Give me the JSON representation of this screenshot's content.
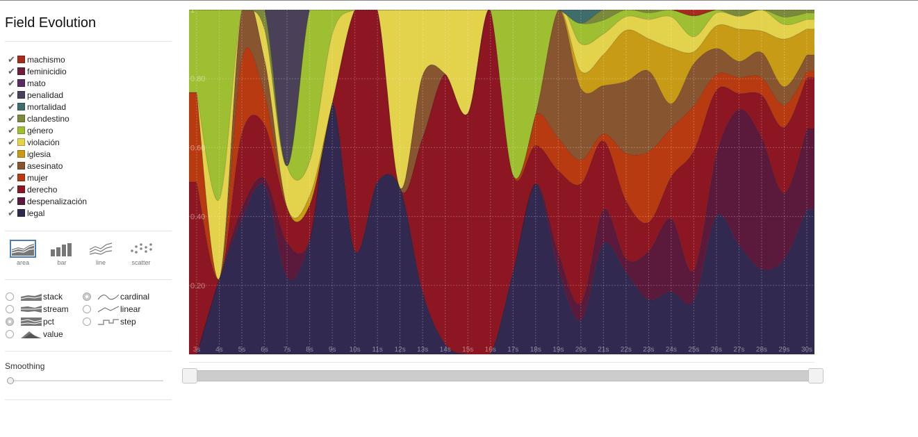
{
  "sidebar": {
    "title": "Field Evolution",
    "check_glyph": "✔",
    "renderers": [
      {
        "label": "area",
        "icon": "area-icon",
        "selected": true
      },
      {
        "label": "bar",
        "icon": "bar-icon",
        "selected": false
      },
      {
        "label": "line",
        "icon": "line-icon",
        "selected": false
      },
      {
        "label": "scatter",
        "icon": "scatter-icon",
        "selected": false
      }
    ],
    "offsets": [
      {
        "label": "stack",
        "icon": "stack-icon",
        "checked": false
      },
      {
        "label": "stream",
        "icon": "stream-icon",
        "checked": false
      },
      {
        "label": "pct",
        "icon": "pct-icon",
        "checked": true
      },
      {
        "label": "value",
        "icon": "value-icon",
        "checked": false
      }
    ],
    "interpolations": [
      {
        "label": "cardinal",
        "icon": "cardinal-icon",
        "checked": true
      },
      {
        "label": "linear",
        "icon": "linear-icon",
        "checked": false
      },
      {
        "label": "step",
        "icon": "step-icon",
        "checked": false
      }
    ],
    "smoothing_label": "Smoothing",
    "smoothing_value": 0
  },
  "colors": {
    "accent": "#4a7fb2"
  },
  "range_slider": {
    "start": 0,
    "end": 1
  },
  "chart_data": {
    "type": "area",
    "offset": "pct",
    "interpolation": "cardinal",
    "ylim": [
      0,
      1
    ],
    "y_ticks": [
      "0.20",
      "0.40",
      "0.60",
      "0.80",
      "1"
    ],
    "x": [
      "3s",
      "4s",
      "5s",
      "6s",
      "7s",
      "8s",
      "9s",
      "10s",
      "11s",
      "12s",
      "13s",
      "14s",
      "15s",
      "16s",
      "17s",
      "18s",
      "19s",
      "20s",
      "21s",
      "22s",
      "23s",
      "24s",
      "25s",
      "26s",
      "27s",
      "28s",
      "29s",
      "30s"
    ],
    "series": [
      {
        "name": "legal",
        "color": "#31294f",
        "values": [
          0.0,
          0.22,
          0.36,
          0.44,
          0.26,
          0.5,
          0.73,
          0.3,
          0.5,
          0.29,
          0.21,
          0.03,
          0.0,
          0.0,
          0.24,
          0.49,
          0.26,
          0.1,
          0.32,
          0.24,
          0.17,
          0.18,
          0.18,
          0.43,
          0.34,
          0.24,
          0.26,
          0.45
        ]
      },
      {
        "name": "despenalización",
        "color": "#5b1a3c",
        "values": [
          0.0,
          0.0,
          0.03,
          0.02,
          0.12,
          0.0,
          0.0,
          0.0,
          0.0,
          0.0,
          0.0,
          0.0,
          0.0,
          0.0,
          0.0,
          0.0,
          0.05,
          0.05,
          0.1,
          0.04,
          0.15,
          0.21,
          0.1,
          0.19,
          0.42,
          0.37,
          0.18,
          0.25
        ]
      },
      {
        "name": "derecho",
        "color": "#8c1621",
        "values": [
          0.5,
          0.0,
          0.2,
          0.14,
          0.12,
          0.15,
          0.0,
          0.7,
          0.5,
          0.0,
          0.52,
          0.8,
          0.7,
          1.0,
          0.28,
          0.11,
          0.25,
          0.35,
          0.2,
          0.17,
          0.09,
          0.12,
          0.4,
          0.2,
          0.05,
          0.12,
          0.18,
          0.16
        ]
      },
      {
        "name": "mujer",
        "color": "#b83a11",
        "values": [
          0.26,
          0.0,
          0.2,
          0.08,
          0.0,
          0.0,
          0.0,
          0.0,
          0.0,
          0.0,
          0.0,
          0.0,
          0.0,
          0.0,
          0.0,
          0.09,
          0.1,
          0.07,
          0.02,
          0.14,
          0.22,
          0.14,
          0.15,
          0.05,
          0.05,
          0.05,
          0.06,
          0.02
        ]
      },
      {
        "name": "asesinato",
        "color": "#875630",
        "values": [
          0.0,
          0.0,
          0.13,
          0.09,
          0.0,
          0.0,
          0.0,
          0.0,
          0.0,
          0.0,
          0.21,
          0.0,
          0.0,
          0.0,
          0.0,
          0.0,
          0.39,
          0.21,
          0.14,
          0.21,
          0.25,
          0.07,
          0.14,
          0.08,
          0.05,
          0.07,
          0.05,
          0.05
        ]
      },
      {
        "name": "iglesia",
        "color": "#c89b16",
        "values": [
          0.0,
          0.0,
          0.0,
          0.0,
          0.0,
          0.04,
          0.0,
          0.0,
          0.0,
          0.0,
          0.0,
          0.0,
          0.0,
          0.0,
          0.0,
          0.0,
          0.0,
          0.05,
          0.09,
          0.15,
          0.1,
          0.16,
          0.04,
          0.07,
          0.1,
          0.06,
          0.13,
          0.08
        ]
      },
      {
        "name": "violación",
        "color": "#e2d24c",
        "values": [
          0.0,
          0.23,
          0.0,
          0.08,
          0.14,
          0.15,
          0.2,
          0.0,
          0.0,
          0.31,
          0.22,
          0.19,
          0.3,
          0.0,
          0.0,
          0.0,
          0.0,
          0.08,
          0.06,
          0.04,
          0.06,
          0.09,
          0.05,
          0.04,
          0.04,
          0.06,
          0.04,
          0.03
        ]
      },
      {
        "name": "género",
        "color": "#9fbf33",
        "values": [
          0.24,
          0.55,
          0.0,
          0.0,
          0.0,
          0.66,
          0.07,
          0.0,
          0.0,
          0.0,
          0.0,
          0.0,
          0.0,
          0.0,
          0.48,
          0.3,
          0.0,
          0.06,
          0.04,
          0.02,
          0.02,
          0.02,
          0.07,
          0.01,
          0.0,
          0.0,
          0.02,
          0.02
        ]
      },
      {
        "name": "clandestino",
        "color": "#7b8a3a",
        "values": [
          0.0,
          0.0,
          0.0,
          0.05,
          0.0,
          0.0,
          0.0,
          0.0,
          0.0,
          0.0,
          0.0,
          0.0,
          0.0,
          0.0,
          0.0,
          0.0,
          0.0,
          0.0,
          0.03,
          0.0,
          0.01,
          0.0,
          0.0,
          0.0,
          0.02,
          0.0,
          0.02,
          0.01
        ]
      },
      {
        "name": "mortalidad",
        "color": "#3e6d6a",
        "values": [
          0.0,
          0.0,
          0.0,
          0.0,
          0.0,
          0.0,
          0.0,
          0.0,
          0.0,
          0.0,
          0.0,
          0.0,
          0.0,
          0.0,
          0.0,
          0.0,
          0.0,
          0.04,
          0.0,
          0.0,
          0.0,
          0.0,
          0.0,
          0.0,
          0.0,
          0.0,
          0.0,
          0.0
        ]
      },
      {
        "name": "penalidad",
        "color": "#4a4158",
        "values": [
          0.0,
          0.0,
          0.0,
          0.0,
          0.53,
          0.0,
          0.0,
          0.0,
          0.0,
          0.0,
          0.0,
          0.0,
          0.0,
          0.0,
          0.0,
          0.0,
          0.0,
          0.0,
          0.0,
          0.0,
          0.0,
          0.0,
          0.0,
          0.0,
          0.0,
          0.0,
          0.0,
          0.0
        ]
      },
      {
        "name": "mato",
        "color": "#5a2a62",
        "values": [
          0.0,
          0.0,
          0.0,
          0.0,
          0.0,
          0.0,
          0.0,
          0.0,
          0.0,
          0.0,
          0.0,
          0.0,
          0.0,
          0.0,
          0.0,
          0.0,
          0.0,
          0.0,
          0.0,
          0.0,
          0.0,
          0.0,
          0.0,
          0.0,
          0.0,
          0.0,
          0.0,
          0.0
        ]
      },
      {
        "name": "feminicidio",
        "color": "#731c3a",
        "values": [
          0.0,
          0.0,
          0.0,
          0.0,
          0.0,
          0.0,
          0.0,
          0.0,
          0.0,
          0.0,
          0.0,
          0.0,
          0.0,
          0.0,
          0.0,
          0.0,
          0.0,
          0.0,
          0.0,
          0.0,
          0.0,
          0.0,
          0.0,
          0.0,
          0.0,
          0.0,
          0.0,
          0.0
        ]
      },
      {
        "name": "machismo",
        "color": "#a82a1f",
        "values": [
          0.0,
          0.0,
          0.0,
          0.0,
          0.0,
          0.0,
          0.0,
          0.0,
          0.0,
          0.0,
          0.0,
          0.0,
          0.0,
          0.0,
          0.0,
          0.0,
          0.0,
          0.0,
          0.0,
          0.0,
          0.0,
          0.0,
          0.02,
          0.0,
          0.0,
          0.0,
          0.0,
          0.0
        ]
      }
    ]
  }
}
